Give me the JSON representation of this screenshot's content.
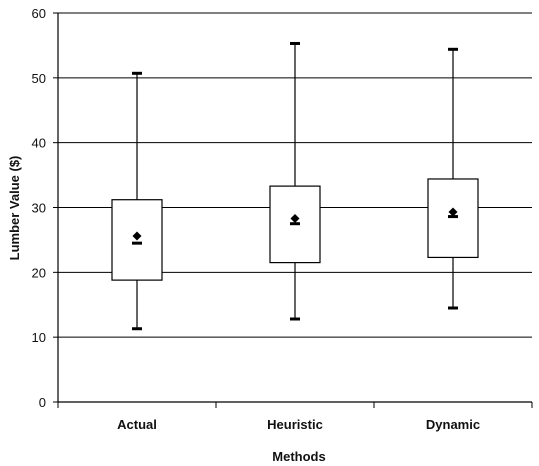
{
  "chart_data": {
    "type": "boxplot",
    "xlabel": "Methods",
    "ylabel": "Lumber Value ($)",
    "ylim": [
      0,
      60
    ],
    "yticks": [
      0,
      10,
      20,
      30,
      40,
      50,
      60
    ],
    "grid": "horizontal",
    "categories": [
      "Actual",
      "Heuristic",
      "Dynamic"
    ],
    "boxes": [
      {
        "category": "Actual",
        "min": 11.3,
        "q1": 18.8,
        "median": 24.5,
        "mean": 25.6,
        "q3": 31.2,
        "max": 50.7
      },
      {
        "category": "Heuristic",
        "min": 12.8,
        "q1": 21.5,
        "median": 27.5,
        "mean": 28.3,
        "q3": 33.3,
        "max": 55.3
      },
      {
        "category": "Dynamic",
        "min": 14.5,
        "q1": 22.3,
        "median": 28.6,
        "mean": 29.3,
        "q3": 34.4,
        "max": 54.4
      }
    ]
  }
}
